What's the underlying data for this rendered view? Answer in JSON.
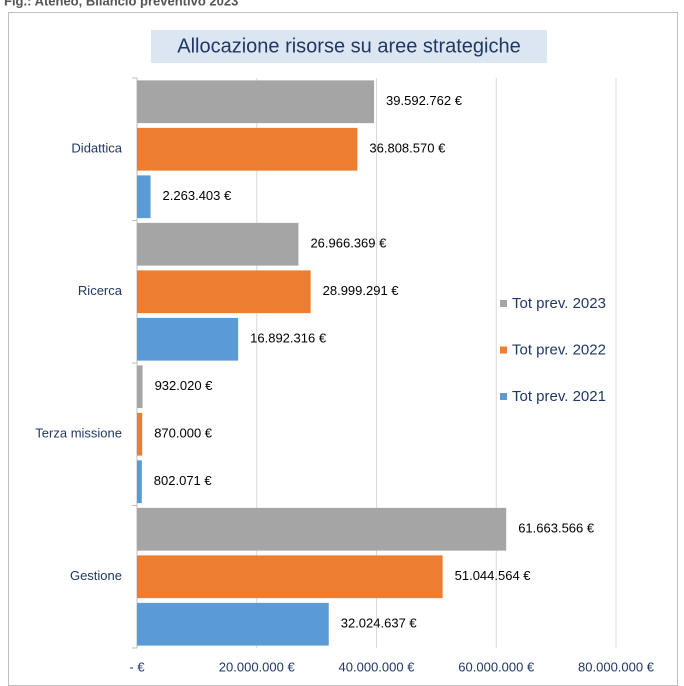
{
  "chart_data": {
    "type": "bar",
    "orientation": "horizontal",
    "caption": "Fig.: Ateneo, Bilancio preventivo 2023",
    "title": "Allocazione risorse su aree strategiche",
    "categories": [
      "Didattica",
      "Ricerca",
      "Terza missione",
      "Gestione"
    ],
    "series": [
      {
        "name": "Tot prev. 2023",
        "color": "#a5a5a5",
        "values": [
          39592762,
          26966369,
          932020,
          61663566
        ],
        "value_labels": [
          "39.592.762 €",
          "26.966.369 €",
          "932.020 €",
          "61.663.566 €"
        ]
      },
      {
        "name": "Tot prev. 2022",
        "color": "#ed7d31",
        "values": [
          36808570,
          28999291,
          870000,
          51044564
        ],
        "value_labels": [
          "36.808.570 €",
          "28.999.291 €",
          "870.000 €",
          "51.044.564 €"
        ]
      },
      {
        "name": "Tot prev. 2021",
        "color": "#5b9bd5",
        "values": [
          2263403,
          16892316,
          802071,
          32024637
        ],
        "value_labels": [
          "2.263.403 €",
          "16.892.316 €",
          "802.071 €",
          "32.024.637 €"
        ]
      }
    ],
    "xlim": [
      0,
      80000000
    ],
    "xticks": [
      {
        "value": 0,
        "label": "- €"
      },
      {
        "value": 20000000,
        "label": "20.000.000 €"
      },
      {
        "value": 40000000,
        "label": "40.000.000 €"
      },
      {
        "value": 60000000,
        "label": "60.000.000 €"
      },
      {
        "value": 80000000,
        "label": "80.000.000 €"
      }
    ],
    "grid": true,
    "legend": "right"
  }
}
